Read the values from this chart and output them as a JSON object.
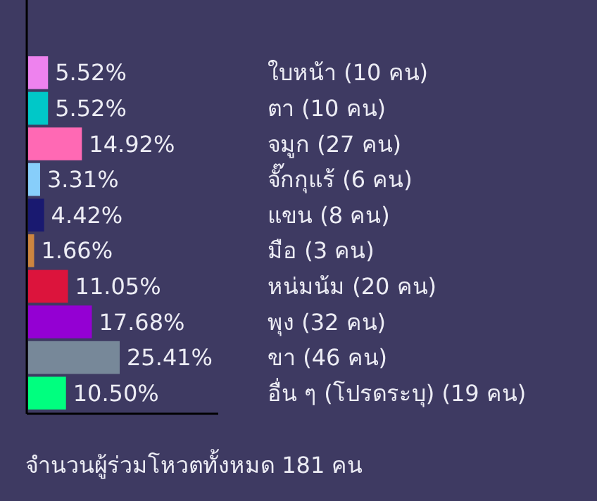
{
  "chart_data": {
    "type": "bar",
    "orientation": "horizontal",
    "categories": [
      "ใบหน้า (10 คน)",
      "ตา (10 คน)",
      "จมูก (27 คน)",
      "จั๊กกุแร้ (6 คน)",
      "แขน (8 คน)",
      "มือ (3 คน)",
      "หน่มน้ม (20 คน)",
      "พุง (32 คน)",
      "ขา (46 คน)",
      "อื่น ๆ (โปรดระบุ) (19 คน)"
    ],
    "values": [
      5.52,
      5.52,
      14.92,
      3.31,
      4.42,
      1.66,
      11.05,
      17.68,
      25.41,
      10.5
    ],
    "colors": [
      "#ee82ee",
      "#00c8c8",
      "#ff69b4",
      "#87cefa",
      "#191970",
      "#cd853f",
      "#dc143c",
      "#9400d3",
      "#778899",
      "#00ff7f"
    ],
    "value_labels": [
      "5.52%",
      "5.52%",
      "14.92%",
      "3.31%",
      "4.42%",
      "1.66%",
      "11.05%",
      "17.68%",
      "25.41%",
      "10.50%"
    ],
    "annotations": [
      "จำนวนผู้ร่วมโหวตทั้งหมด 181 คน"
    ]
  }
}
